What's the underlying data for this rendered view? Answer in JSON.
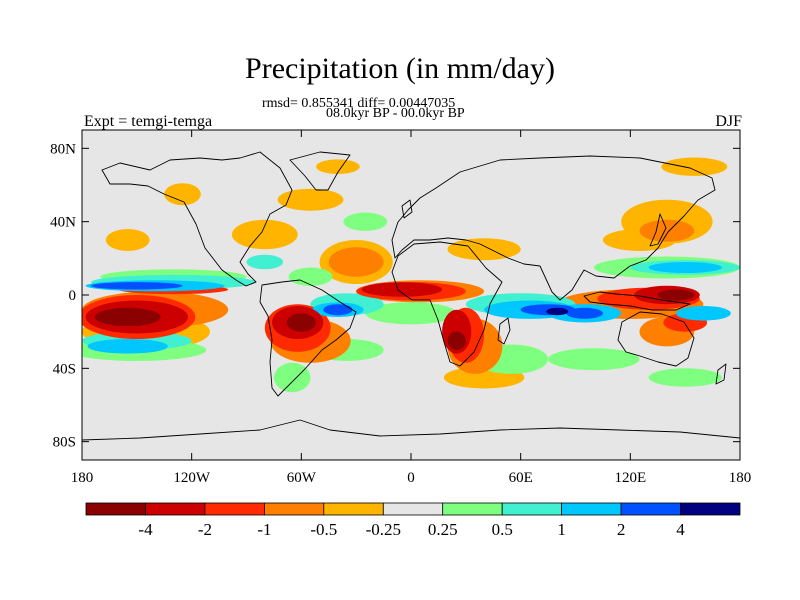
{
  "title": "Precipitation (in mm/day)",
  "subtitle_stats": "rmsd= 0.855341 diff= 0.00447035",
  "subtitle_period": "08.0kyr BP - 00.0kyr BP",
  "left_label": "Expt = temgi-temga",
  "right_label": "DJF",
  "map": {
    "projection": "cylindrical-equidistant",
    "lon_range": [
      -180,
      180
    ],
    "lat_range": [
      -90,
      90
    ],
    "background_color": "#e6e6e6",
    "coast_color": "#000000",
    "x_ticks": [
      {
        "value": -180,
        "label": "180"
      },
      {
        "value": -120,
        "label": "120W"
      },
      {
        "value": -60,
        "label": "60W"
      },
      {
        "value": 0,
        "label": "0"
      },
      {
        "value": 60,
        "label": "60E"
      },
      {
        "value": 120,
        "label": "120E"
      },
      {
        "value": 180,
        "label": "180"
      }
    ],
    "y_ticks": [
      {
        "value": 80,
        "label": "80N"
      },
      {
        "value": 40,
        "label": "40N"
      },
      {
        "value": 0,
        "label": "0"
      },
      {
        "value": -40,
        "label": "40S"
      },
      {
        "value": -80,
        "label": "80S"
      }
    ]
  },
  "colorbar": {
    "colors": [
      "#8b0000",
      "#cc0000",
      "#ff2a00",
      "#ff7f00",
      "#ffb400",
      "#e6e6e6",
      "#7fff7f",
      "#40f0d0",
      "#00c8ff",
      "#0050ff",
      "#000080"
    ],
    "labels": [
      "-4",
      "-2",
      "-1",
      "-0.5",
      "-0.25",
      "0.25",
      "0.5",
      "1",
      "2",
      "4"
    ]
  },
  "anomaly_regions": [
    {
      "level": 0,
      "lon": -155,
      "lat": -12,
      "rlon": 18,
      "rlat": 5
    },
    {
      "level": 0,
      "lon": -60,
      "lat": -15,
      "rlon": 8,
      "rlat": 5
    },
    {
      "level": 0,
      "lon": 25,
      "lat": -25,
      "rlon": 5,
      "rlat": 5
    },
    {
      "level": 0,
      "lon": 145,
      "lat": 0,
      "rlon": 10,
      "rlat": 3
    },
    {
      "level": 1,
      "lon": -150,
      "lat": -12,
      "rlon": 28,
      "rlat": 9
    },
    {
      "level": 1,
      "lon": -62,
      "lat": -15,
      "rlon": 14,
      "rlat": 9
    },
    {
      "level": 1,
      "lon": -5,
      "lat": 3,
      "rlon": 22,
      "rlat": 4
    },
    {
      "level": 1,
      "lon": 25,
      "lat": -20,
      "rlon": 8,
      "rlat": 12
    },
    {
      "level": 1,
      "lon": 140,
      "lat": 0,
      "rlon": 18,
      "rlat": 5
    },
    {
      "level": 2,
      "lon": -130,
      "lat": 3,
      "rlon": 30,
      "rlat": 2.5
    },
    {
      "level": 2,
      "lon": -150,
      "lat": -12,
      "rlon": 32,
      "rlat": 12
    },
    {
      "level": 2,
      "lon": -62,
      "lat": -18,
      "rlon": 18,
      "rlat": 13
    },
    {
      "level": 2,
      "lon": 0,
      "lat": 2,
      "rlon": 30,
      "rlat": 5
    },
    {
      "level": 2,
      "lon": 30,
      "lat": -22,
      "rlon": 10,
      "rlat": 15
    },
    {
      "level": 2,
      "lon": 130,
      "lat": -2,
      "rlon": 28,
      "rlat": 6
    },
    {
      "level": 2,
      "lon": 150,
      "lat": -15,
      "rlon": 12,
      "rlat": 5
    },
    {
      "level": 3,
      "lon": -140,
      "lat": -8,
      "rlon": 40,
      "rlat": 10
    },
    {
      "level": 3,
      "lon": -55,
      "lat": -25,
      "rlon": 22,
      "rlat": 12
    },
    {
      "level": 3,
      "lon": 5,
      "lat": 2,
      "rlon": 35,
      "rlat": 6
    },
    {
      "level": 3,
      "lon": 35,
      "lat": -28,
      "rlon": 15,
      "rlat": 15
    },
    {
      "level": 3,
      "lon": 120,
      "lat": -5,
      "rlon": 40,
      "rlat": 8
    },
    {
      "level": 3,
      "lon": 140,
      "lat": -20,
      "rlon": 15,
      "rlat": 8
    },
    {
      "level": 3,
      "lon": 140,
      "lat": 35,
      "rlon": 15,
      "rlat": 6
    },
    {
      "level": 3,
      "lon": -30,
      "lat": 18,
      "rlon": 15,
      "rlat": 8
    },
    {
      "level": 4,
      "lon": -145,
      "lat": -20,
      "rlon": 35,
      "rlat": 10
    },
    {
      "level": 4,
      "lon": -155,
      "lat": 30,
      "rlon": 12,
      "rlat": 6
    },
    {
      "level": 4,
      "lon": -80,
      "lat": 33,
      "rlon": 18,
      "rlat": 8
    },
    {
      "level": 4,
      "lon": -55,
      "lat": 52,
      "rlon": 18,
      "rlat": 6
    },
    {
      "level": 4,
      "lon": -40,
      "lat": 70,
      "rlon": 12,
      "rlat": 4
    },
    {
      "level": 4,
      "lon": -30,
      "lat": 18,
      "rlon": 20,
      "rlat": 12
    },
    {
      "level": 4,
      "lon": 40,
      "lat": 25,
      "rlon": 20,
      "rlat": 6
    },
    {
      "level": 4,
      "lon": 40,
      "lat": -45,
      "rlon": 22,
      "rlat": 6
    },
    {
      "level": 4,
      "lon": 140,
      "lat": 40,
      "rlon": 25,
      "rlat": 12
    },
    {
      "level": 4,
      "lon": 155,
      "lat": 70,
      "rlon": 18,
      "rlat": 5
    },
    {
      "level": 4,
      "lon": 125,
      "lat": 30,
      "rlon": 20,
      "rlat": 6
    },
    {
      "level": 4,
      "lon": -125,
      "lat": 55,
      "rlon": 10,
      "rlat": 6
    },
    {
      "level": 5,
      "lon": -30,
      "lat": 40,
      "rlon": 18,
      "rlat": 6
    },
    {
      "level": 6,
      "lon": -150,
      "lat": -30,
      "rlon": 38,
      "rlat": 6
    },
    {
      "level": 6,
      "lon": -130,
      "lat": 10,
      "rlon": 40,
      "rlat": 4
    },
    {
      "level": 6,
      "lon": -35,
      "lat": -30,
      "rlon": 20,
      "rlat": 6
    },
    {
      "level": 6,
      "lon": -65,
      "lat": -45,
      "rlon": 10,
      "rlat": 8
    },
    {
      "level": 6,
      "lon": -25,
      "lat": 40,
      "rlon": 12,
      "rlat": 5
    },
    {
      "level": 6,
      "lon": 0,
      "lat": -10,
      "rlon": 25,
      "rlat": 6
    },
    {
      "level": 6,
      "lon": 55,
      "lat": -35,
      "rlon": 20,
      "rlat": 8
    },
    {
      "level": 6,
      "lon": 100,
      "lat": -35,
      "rlon": 25,
      "rlat": 6
    },
    {
      "level": 6,
      "lon": 150,
      "lat": -45,
      "rlon": 20,
      "rlat": 5
    },
    {
      "level": 6,
      "lon": 140,
      "lat": 15,
      "rlon": 40,
      "rlat": 6
    },
    {
      "level": 6,
      "lon": -55,
      "lat": 10,
      "rlon": 12,
      "rlat": 5
    },
    {
      "level": 7,
      "lon": -130,
      "lat": 7,
      "rlon": 45,
      "rlat": 4
    },
    {
      "level": 7,
      "lon": -150,
      "lat": -25,
      "rlon": 30,
      "rlat": 5
    },
    {
      "level": 7,
      "lon": -35,
      "lat": -5,
      "rlon": 20,
      "rlat": 6
    },
    {
      "level": 7,
      "lon": 60,
      "lat": -5,
      "rlon": 30,
      "rlat": 6
    },
    {
      "level": 7,
      "lon": 150,
      "lat": 15,
      "rlon": 30,
      "rlat": 4
    },
    {
      "level": 7,
      "lon": -80,
      "lat": 18,
      "rlon": 10,
      "rlat": 4
    },
    {
      "level": 8,
      "lon": -140,
      "lat": 5,
      "rlon": 38,
      "rlat": 3
    },
    {
      "level": 8,
      "lon": -155,
      "lat": -28,
      "rlon": 22,
      "rlat": 4
    },
    {
      "level": 8,
      "lon": -40,
      "lat": -8,
      "rlon": 14,
      "rlat": 4
    },
    {
      "level": 8,
      "lon": 65,
      "lat": -8,
      "rlon": 25,
      "rlat": 5
    },
    {
      "level": 8,
      "lon": 95,
      "lat": -10,
      "rlon": 20,
      "rlat": 5
    },
    {
      "level": 8,
      "lon": 160,
      "lat": -10,
      "rlon": 15,
      "rlat": 4
    },
    {
      "level": 8,
      "lon": 150,
      "lat": 15,
      "rlon": 20,
      "rlat": 3
    },
    {
      "level": 9,
      "lon": -150,
      "lat": 5,
      "rlon": 25,
      "rlat": 2
    },
    {
      "level": 9,
      "lon": 75,
      "lat": -8,
      "rlon": 15,
      "rlat": 3
    },
    {
      "level": 9,
      "lon": -40,
      "lat": -8,
      "rlon": 8,
      "rlat": 3
    },
    {
      "level": 9,
      "lon": 95,
      "lat": -10,
      "rlon": 10,
      "rlat": 3
    },
    {
      "level": 10,
      "lon": 80,
      "lat": -9,
      "rlon": 6,
      "rlat": 2
    }
  ]
}
